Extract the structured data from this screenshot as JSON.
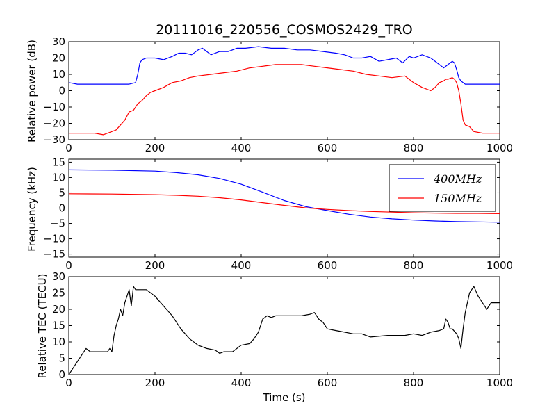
{
  "figure": {
    "title": "20111016_220556_COSMOS2429_TRO",
    "xlabel": "Time (s)"
  },
  "chart_data": [
    {
      "type": "line",
      "ylabel": "Relative power (dB)",
      "xlim": [
        0,
        1000
      ],
      "ylim": [
        -30,
        30
      ],
      "xticks": [
        0,
        200,
        400,
        600,
        800,
        1000
      ],
      "yticks": [
        -30,
        -20,
        -10,
        0,
        10,
        20,
        30
      ],
      "grid": false,
      "series": [
        {
          "name": "",
          "color": "#0000ff",
          "x": [
            0,
            20,
            40,
            60,
            80,
            100,
            120,
            140,
            155,
            160,
            165,
            170,
            180,
            200,
            220,
            240,
            255,
            270,
            285,
            300,
            310,
            330,
            350,
            370,
            390,
            410,
            440,
            470,
            500,
            530,
            560,
            590,
            620,
            640,
            660,
            680,
            700,
            720,
            740,
            760,
            775,
            790,
            800,
            820,
            840,
            860,
            870,
            880,
            890,
            895,
            900,
            905,
            910,
            915,
            920,
            940,
            960,
            980,
            1000
          ],
          "y": [
            5,
            4,
            4,
            4,
            4,
            4,
            4,
            4,
            5,
            10,
            17,
            19,
            20,
            20,
            19,
            21,
            23,
            23,
            22,
            25,
            26,
            22,
            24,
            24,
            26,
            26,
            27,
            26,
            26,
            25,
            25,
            24,
            23,
            22,
            20,
            20,
            21,
            18,
            19,
            20,
            17,
            21,
            20,
            22,
            20,
            16,
            14,
            16,
            18,
            17,
            13,
            8,
            6,
            5,
            4,
            4,
            4,
            4,
            4
          ]
        },
        {
          "name": "",
          "color": "#ff0000",
          "x": [
            0,
            20,
            40,
            60,
            80,
            100,
            110,
            120,
            130,
            140,
            150,
            160,
            170,
            180,
            190,
            200,
            220,
            240,
            260,
            280,
            300,
            330,
            360,
            390,
            420,
            450,
            480,
            510,
            540,
            570,
            600,
            630,
            660,
            690,
            720,
            750,
            780,
            800,
            820,
            840,
            850,
            860,
            870,
            875,
            880,
            890,
            895,
            900,
            905,
            910,
            915,
            920,
            930,
            940,
            960,
            980,
            1000
          ],
          "y": [
            -26,
            -26,
            -26,
            -26,
            -27,
            -25,
            -24,
            -21,
            -18,
            -13,
            -12,
            -8,
            -6,
            -3,
            -1,
            0,
            2,
            5,
            6,
            8,
            9,
            10,
            11,
            12,
            14,
            15,
            16,
            16,
            16,
            15,
            14,
            13,
            12,
            10,
            9,
            8,
            9,
            5,
            2,
            0,
            2,
            5,
            6,
            7,
            7,
            8,
            7,
            5,
            0,
            -8,
            -18,
            -21,
            -22,
            -25,
            -26,
            -26,
            -26
          ]
        }
      ]
    },
    {
      "type": "line",
      "ylabel": "Frequency (kHz)",
      "xlim": [
        0,
        1000
      ],
      "ylim": [
        -16,
        16
      ],
      "xticks": [
        0,
        200,
        400,
        600,
        800,
        1000
      ],
      "yticks": [
        -15,
        -10,
        -5,
        0,
        5,
        10,
        15
      ],
      "grid": false,
      "legend_position": "top-right",
      "series": [
        {
          "name": "400MHz",
          "color": "#0000ff",
          "x": [
            0,
            100,
            200,
            250,
            300,
            350,
            400,
            450,
            500,
            550,
            600,
            650,
            700,
            750,
            800,
            850,
            900,
            950,
            1000
          ],
          "y": [
            12.5,
            12.4,
            12.1,
            11.6,
            10.9,
            9.7,
            7.8,
            5.2,
            2.5,
            0.5,
            -0.8,
            -2.0,
            -2.9,
            -3.5,
            -3.9,
            -4.2,
            -4.4,
            -4.5,
            -4.6
          ]
        },
        {
          "name": "150MHz",
          "color": "#ff0000",
          "x": [
            0,
            100,
            200,
            250,
            300,
            350,
            400,
            450,
            500,
            550,
            600,
            650,
            700,
            750,
            800,
            850,
            900,
            950,
            1000
          ],
          "y": [
            4.7,
            4.6,
            4.4,
            4.2,
            3.9,
            3.4,
            2.7,
            1.8,
            0.9,
            0.1,
            -0.4,
            -0.8,
            -1.1,
            -1.3,
            -1.5,
            -1.6,
            -1.7,
            -1.7,
            -1.8
          ]
        }
      ]
    },
    {
      "type": "line",
      "ylabel": "Relative TEC (TECU)",
      "xlim": [
        0,
        1000
      ],
      "ylim": [
        0,
        30
      ],
      "xticks": [
        0,
        200,
        400,
        600,
        800,
        1000
      ],
      "yticks": [
        0,
        5,
        10,
        15,
        20,
        25,
        30
      ],
      "grid": false,
      "series": [
        {
          "name": "",
          "color": "#000000",
          "x": [
            0,
            5,
            10,
            20,
            30,
            40,
            50,
            60,
            70,
            80,
            90,
            95,
            100,
            105,
            110,
            115,
            120,
            125,
            130,
            135,
            140,
            145,
            150,
            155,
            160,
            165,
            170,
            180,
            190,
            200,
            220,
            240,
            260,
            280,
            300,
            320,
            340,
            350,
            360,
            380,
            400,
            420,
            430,
            440,
            450,
            460,
            470,
            480,
            500,
            520,
            540,
            560,
            570,
            580,
            590,
            600,
            620,
            640,
            660,
            680,
            700,
            740,
            780,
            800,
            820,
            840,
            860,
            870,
            875,
            880,
            885,
            890,
            900,
            905,
            910,
            915,
            920,
            930,
            940,
            950,
            960,
            970,
            980,
            990,
            1000
          ],
          "y": [
            0,
            1,
            2,
            4,
            6,
            8,
            7,
            7,
            7,
            7,
            7,
            8,
            7,
            12,
            15,
            17,
            20,
            18,
            22,
            24,
            26,
            21,
            27,
            26,
            26,
            26,
            26,
            26,
            25,
            24,
            21,
            18,
            14,
            11,
            9,
            8,
            7.5,
            6.5,
            7,
            7,
            9,
            9.5,
            11,
            13,
            17,
            18,
            17.5,
            18,
            18,
            18,
            18,
            18.5,
            19,
            17,
            16,
            14,
            13.5,
            13,
            12.5,
            12.5,
            11.5,
            12,
            12,
            12.5,
            12,
            13,
            13.5,
            14,
            17,
            16,
            14,
            14,
            12.5,
            11,
            8,
            14,
            19,
            25,
            27,
            24,
            22,
            20,
            22,
            22,
            22
          ]
        }
      ]
    }
  ]
}
